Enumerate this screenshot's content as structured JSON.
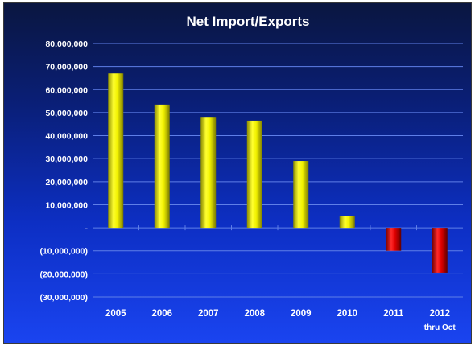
{
  "chart_data": {
    "type": "bar",
    "title": "Net Import/Exports",
    "categories": [
      "2005",
      "2006",
      "2007",
      "2008",
      "2009",
      "2010",
      "2011",
      "2012"
    ],
    "category_sublabels": [
      "",
      "",
      "",
      "",
      "",
      "",
      "",
      "thru Oct"
    ],
    "values": [
      67000000,
      53500000,
      47800000,
      46500000,
      29000000,
      5000000,
      -10000000,
      -19500000
    ],
    "ylim": [
      -30000000,
      80000000
    ],
    "yticks": [
      80000000,
      70000000,
      60000000,
      50000000,
      40000000,
      30000000,
      20000000,
      10000000,
      0,
      -10000000,
      -20000000,
      -30000000
    ],
    "ytick_labels": [
      "80,000,000",
      "70,000,000",
      "60,000,000",
      "50,000,000",
      "40,000,000",
      "30,000,000",
      "20,000,000",
      "10,000,000",
      "-",
      "(10,000,000)",
      "(20,000,000)",
      "(30,000,000)"
    ],
    "grid": true,
    "colors": {
      "positive": "#f2f200",
      "negative": "#e00000",
      "grid": "#5f7fe8",
      "text": "#ffffff"
    }
  }
}
